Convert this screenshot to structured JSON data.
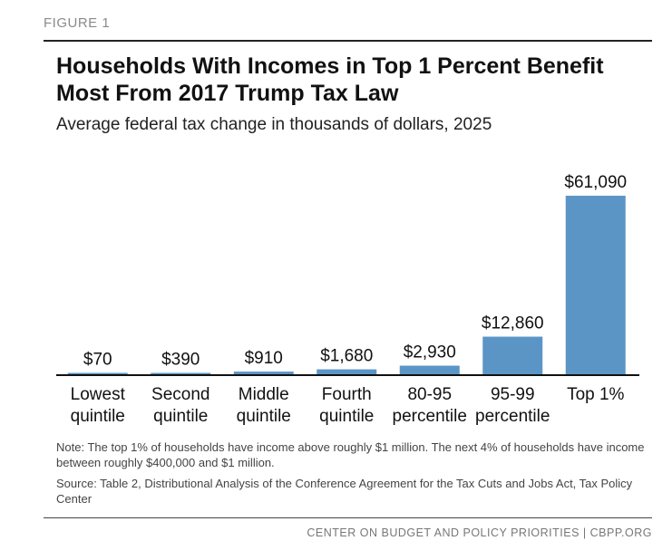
{
  "figure_label": "FIGURE 1",
  "chart_data": {
    "type": "bar",
    "title": "Households With Incomes in Top 1 Percent Benefit Most From 2017 Trump Tax Law",
    "subtitle": "Average federal tax change in thousands of dollars, 2025",
    "categories": [
      [
        "Lowest",
        "quintile"
      ],
      [
        "Second",
        "quintile"
      ],
      [
        "Middle",
        "quintile"
      ],
      [
        "Fourth",
        "quintile"
      ],
      [
        "80-95",
        "percentile"
      ],
      [
        "95-99",
        "percentile"
      ],
      [
        "Top 1%"
      ]
    ],
    "values": [
      70,
      390,
      910,
      1680,
      2930,
      12860,
      61090
    ],
    "data_labels": [
      "$70",
      "$390",
      "$910",
      "$1,680",
      "$2,930",
      "$12,860",
      "$61,090"
    ],
    "ylim": [
      0,
      61090
    ],
    "grid": false,
    "bar_color": "#5b95c6"
  },
  "notes": {
    "note": "Note: The top 1% of households have income above roughly $1 million. The next 4% of households have income between roughly $400,000 and $1 million.",
    "source": "Source: Table 2, Distributional Analysis of the Conference Agreement for the Tax Cuts and Jobs Act, Tax Policy Center"
  },
  "footer": "CENTER ON BUDGET AND POLICY PRIORITIES | CBPP.ORG"
}
